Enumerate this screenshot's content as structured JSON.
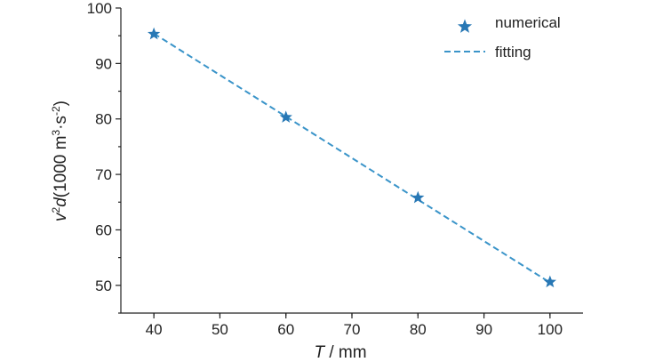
{
  "chart_data": {
    "type": "scatter",
    "title": "",
    "xlabel": {
      "italic": "T",
      "rest": " / mm"
    },
    "ylabel": {
      "v": "v",
      "exp2": "2",
      "d": "d",
      "open": "(1000 m",
      "exp3": "3",
      "dot": "·s",
      "expm2": "-2",
      "close": ")"
    },
    "xlim": [
      35,
      105
    ],
    "ylim": [
      45,
      100
    ],
    "xticks": [
      40,
      50,
      60,
      70,
      80,
      90,
      100
    ],
    "yticks": [
      50,
      60,
      70,
      80,
      90,
      100
    ],
    "series": [
      {
        "name": "numerical",
        "marker": "star",
        "color": "#2878b5",
        "points": [
          {
            "x": 40,
            "y": 95.3
          },
          {
            "x": 60,
            "y": 80.3
          },
          {
            "x": 80,
            "y": 65.8
          },
          {
            "x": 100,
            "y": 50.6
          }
        ]
      },
      {
        "name": "fitting",
        "style": "dashed-line",
        "color": "#3a94c9",
        "points": [
          {
            "x": 40,
            "y": 95.4
          },
          {
            "x": 100,
            "y": 50.5
          }
        ]
      }
    ],
    "legend": {
      "position": "top-right"
    },
    "grid": false
  }
}
